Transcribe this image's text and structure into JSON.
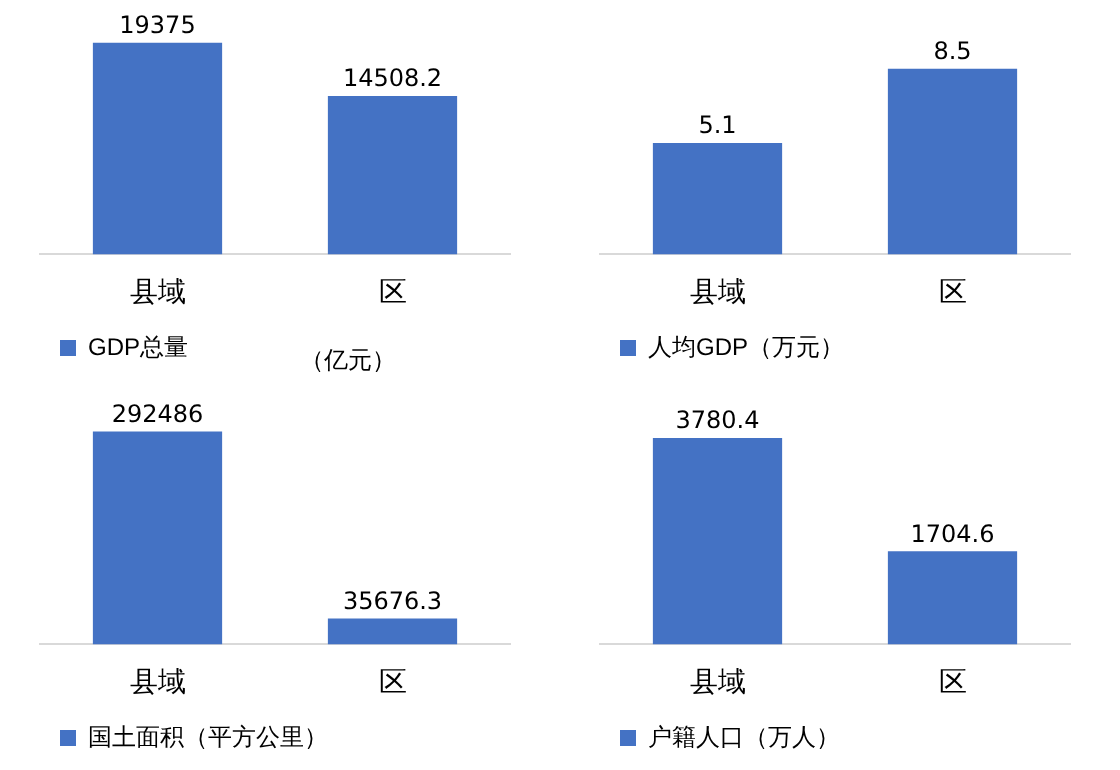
{
  "chart_data": [
    {
      "type": "bar",
      "categories": [
        "县域",
        "区"
      ],
      "series": [
        {
          "name": "GDP总量",
          "color": "#4472c4",
          "values": [
            19375,
            14508.2
          ]
        }
      ],
      "data_labels": true,
      "legend": "bottom",
      "annotations": [
        "（亿元）"
      ]
    },
    {
      "type": "bar",
      "categories": [
        "县域",
        "区"
      ],
      "series": [
        {
          "name": "人均GDP（万元）",
          "color": "#4472c4",
          "values": [
            5.1,
            8.5
          ]
        }
      ],
      "data_labels": true,
      "legend": "bottom"
    },
    {
      "type": "bar",
      "categories": [
        "县域",
        "区"
      ],
      "series": [
        {
          "name": "国土面积（平方公里）",
          "color": "#4472c4",
          "values": [
            292486,
            35676.3
          ]
        }
      ],
      "data_labels": true,
      "legend": "bottom"
    },
    {
      "type": "bar",
      "categories": [
        "县域",
        "区"
      ],
      "series": [
        {
          "name": "户籍人口（万人）",
          "color": "#4472c4",
          "values": [
            3780.4,
            1704.6
          ]
        }
      ],
      "data_labels": true,
      "legend": "bottom"
    }
  ]
}
